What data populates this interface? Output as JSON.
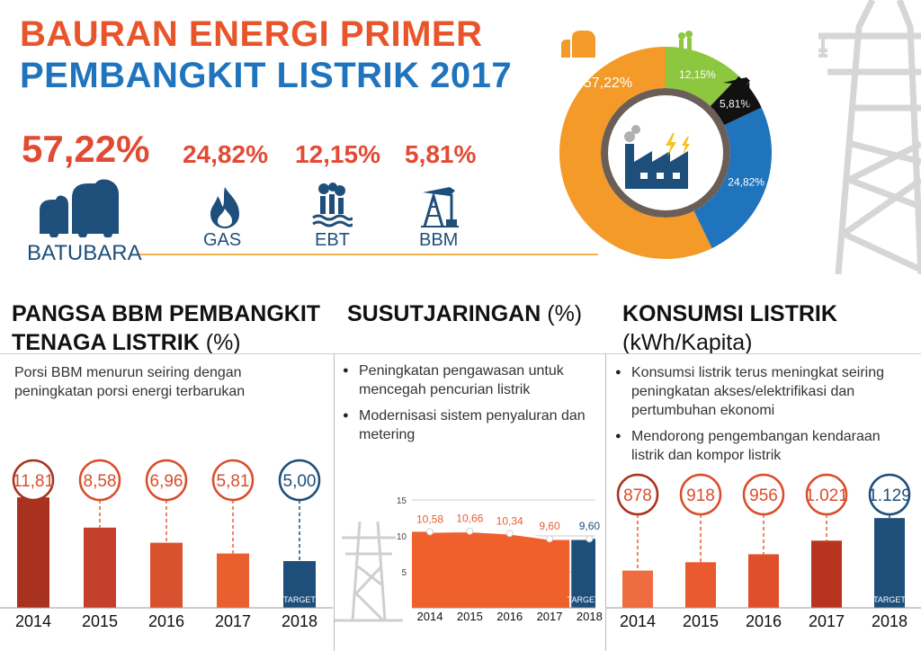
{
  "header": {
    "title_line1": "BAURAN ENERGI PRIMER",
    "title_line2": "PEMBANGKIT LISTRIK 2017"
  },
  "energy_mix": {
    "items": [
      {
        "label": "BATUBARA",
        "pct": "57,22%",
        "icon": "coal-icon",
        "color": "#f39a28"
      },
      {
        "label": "GAS",
        "pct": "24,82%",
        "icon": "gas-flame-icon",
        "color": "#1f74bd"
      },
      {
        "label": "EBT",
        "pct": "12,15%",
        "icon": "renewable-plant-icon",
        "color": "#8dc63f"
      },
      {
        "label": "BBM",
        "pct": "5,81%",
        "icon": "oil-pump-icon",
        "color": "#111111"
      }
    ]
  },
  "bbm_section": {
    "title_line1": "PANGSA BBM PEMBANGKIT",
    "title_line2": "TENAGA LISTRIK",
    "unit": "(%)",
    "subtitle": "Porsi BBM menurun seiring dengan peningkatan porsi energi terbarukan"
  },
  "losses_section": {
    "title": "SUSUTJARINGAN",
    "unit": "(%)",
    "bullets": [
      "Peningkatan pengawasan untuk mencegah pencurian listrik",
      "Modernisasi sistem penyaluran dan metering"
    ]
  },
  "consumption_section": {
    "title": "KONSUMSI LISTRIK",
    "unit": "(kWh/Kapita)",
    "bullets": [
      "Konsumsi listrik terus meningkat seiring peningkatan akses/elektrifikasi dan pertumbuhan ekonomi",
      "Mendorong pengembangan kendaraan listrik dan kompor listrik"
    ]
  },
  "target_label": "TARGET",
  "chart_data": [
    {
      "type": "pie",
      "categories": [
        "BATUBARA",
        "GAS",
        "EBT",
        "BBM"
      ],
      "values": [
        57.22,
        24.82,
        12.15,
        5.81
      ],
      "labels": [
        "57,22%",
        "24,82%",
        "12,15%",
        "5,81%"
      ],
      "colors": [
        "#f39a28",
        "#1f74bd",
        "#8dc63f",
        "#111111"
      ]
    },
    {
      "type": "bar",
      "categories": [
        "2014",
        "2015",
        "2016",
        "2017",
        "2018"
      ],
      "values": [
        11.81,
        8.58,
        6.96,
        5.81,
        5.0
      ],
      "labels": [
        "11,81",
        "8,58",
        "6,96",
        "5,81",
        "5,00"
      ],
      "colors": [
        "#a8321e",
        "#c4402a",
        "#d9522f",
        "#e9602e",
        "#1e4f7a"
      ],
      "ylim": [
        0,
        20
      ]
    },
    {
      "type": "area",
      "categories": [
        "2014",
        "2015",
        "2016",
        "2017",
        "2018"
      ],
      "values": [
        10.58,
        10.66,
        10.34,
        9.6,
        9.6
      ],
      "labels": [
        "10,58",
        "10,66",
        "10,34",
        "9,60",
        "9,60"
      ],
      "yticks": [
        "5",
        "10",
        "15"
      ],
      "ylim": [
        0,
        15
      ]
    },
    {
      "type": "bar",
      "categories": [
        "2014",
        "2015",
        "2016",
        "2017",
        "2018"
      ],
      "values": [
        878,
        918,
        956,
        1021,
        1129
      ],
      "labels": [
        "878",
        "918",
        "956",
        "1.021",
        "1.129"
      ],
      "colors": [
        "#ef6b40",
        "#ea5a2f",
        "#e04f2b",
        "#b8341f",
        "#1e4f7a"
      ],
      "ylim": [
        700,
        1250
      ]
    }
  ]
}
